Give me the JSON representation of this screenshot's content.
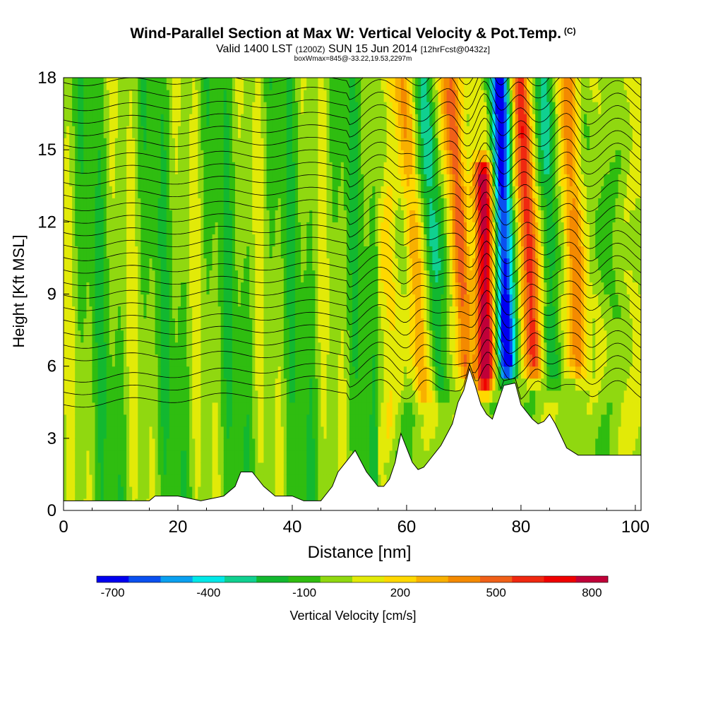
{
  "chart_data": {
    "type": "heatmap",
    "title": "Wind-Parallel Section at Max W: Vertical Velocity & Pot.Temp.",
    "title_mark": "(C)",
    "subtitle_main_a": "Valid 1400 LST",
    "subtitle_small_a": "(1200Z)",
    "subtitle_main_b": "SUN 15 Jun 2014",
    "subtitle_small_b": "[12hrFcst@0432z]",
    "subtitle2": "boxWmax=845@-33.22,19.53,2297m",
    "xlabel": "Distance [nm]",
    "ylabel": "Height [Kft MSL]",
    "xlim": [
      0,
      101
    ],
    "ylim": [
      0,
      18
    ],
    "xticks": [
      0,
      20,
      40,
      60,
      80,
      100
    ],
    "yticks": [
      0,
      3,
      6,
      9,
      12,
      15,
      18
    ],
    "colorbar": {
      "label": "Vertical Velocity [cm/s]",
      "tick_labels": [
        "-700",
        "-400",
        "-100",
        "200",
        "500",
        "800"
      ],
      "tick_values": [
        -700,
        -400,
        -100,
        200,
        500,
        800
      ],
      "range": [
        -750,
        850
      ],
      "colors": [
        "#0000f0",
        "#0a50f0",
        "#0aa0f0",
        "#00e8e8",
        "#10d090",
        "#12b830",
        "#2fbd10",
        "#90d810",
        "#e2ea08",
        "#ffd800",
        "#f8b000",
        "#f48a00",
        "#f06018",
        "#f02810",
        "#f00000",
        "#c00038"
      ]
    },
    "series": [
      {
        "w": 120,
        "x": 57,
        "z0": 3,
        "z1": 18,
        "tilt": 0
      },
      {
        "w": 350,
        "x": 61.5,
        "z0": 5,
        "z1": 18,
        "tilt": -0.25
      },
      {
        "w": -300,
        "x": 65,
        "z0": 5,
        "z1": 18,
        "tilt": -0.22
      },
      {
        "w": 450,
        "x": 69.5,
        "z0": 6,
        "z1": 18,
        "tilt": -0.22
      },
      {
        "w": 850,
        "x": 73.7,
        "z0": 5.5,
        "z1": 14,
        "tilt": -0.05
      },
      {
        "w": -700,
        "x": 77.2,
        "z0": 6,
        "z1": 18,
        "tilt": -0.12
      },
      {
        "w": 600,
        "x": 81.5,
        "z0": 6,
        "z1": 18,
        "tilt": -0.2
      },
      {
        "w": -300,
        "x": 85.2,
        "z0": 5.5,
        "z1": 18,
        "tilt": -0.12
      },
      {
        "w": 400,
        "x": 89.5,
        "z0": 6,
        "z1": 18,
        "tilt": -0.15
      }
    ],
    "terrain": {
      "x": [
        0,
        15,
        16,
        20,
        24,
        28,
        30,
        31,
        33,
        35,
        37,
        40,
        42,
        45,
        47,
        48,
        50,
        51,
        53,
        55,
        56,
        57,
        58,
        59,
        60,
        61,
        62,
        63,
        64,
        66,
        68,
        69,
        70,
        71,
        72,
        73,
        74,
        75,
        77,
        79,
        80,
        81,
        82,
        83,
        84,
        85,
        86,
        87,
        88,
        90,
        101
      ],
      "z": [
        0.4,
        0.4,
        0.6,
        0.6,
        0.4,
        0.6,
        1.0,
        1.6,
        1.6,
        1.0,
        0.6,
        0.6,
        0.4,
        0.4,
        1.0,
        1.6,
        2.2,
        2.5,
        1.6,
        1.0,
        1.0,
        1.3,
        2.0,
        3.2,
        2.6,
        2.0,
        1.7,
        1.8,
        2.1,
        2.7,
        3.6,
        4.5,
        5.0,
        5.9,
        5.2,
        4.4,
        4.0,
        3.8,
        5.2,
        5.3,
        4.4,
        4.1,
        3.8,
        3.6,
        3.7,
        4.0,
        3.6,
        3.1,
        2.6,
        2.3,
        2.3
      ]
    },
    "theta_contours": {
      "base": 20,
      "step": 0.7,
      "offset_base": 0.9
    }
  }
}
